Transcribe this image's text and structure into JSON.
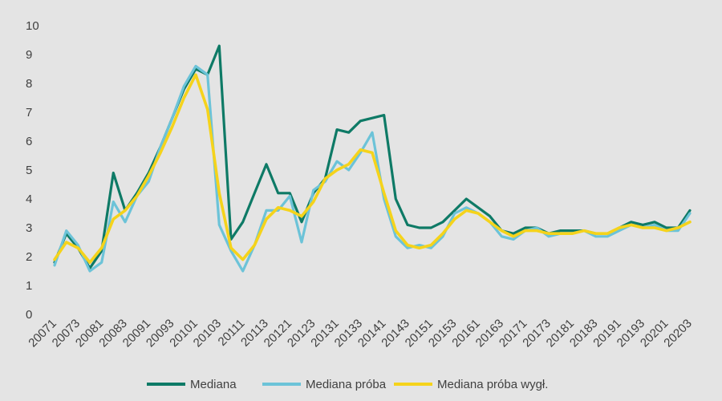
{
  "chart_data": {
    "type": "line",
    "title": "",
    "xlabel": "",
    "ylabel": "",
    "ylim": [
      0,
      10
    ],
    "yticks": [
      0,
      1,
      2,
      3,
      4,
      5,
      6,
      7,
      8,
      9,
      10
    ],
    "grid": false,
    "legend": "bottom",
    "x": [
      "20071",
      "20072",
      "20073",
      "20074",
      "20081",
      "20082",
      "20083",
      "20084",
      "20091",
      "20092",
      "20093",
      "20094",
      "20101",
      "20102",
      "20103",
      "20104",
      "20111",
      "20112",
      "20113",
      "20114",
      "20121",
      "20122",
      "20123",
      "20124",
      "20131",
      "20132",
      "20133",
      "20134",
      "20141",
      "20142",
      "20143",
      "20144",
      "20151",
      "20152",
      "20153",
      "20154",
      "20161",
      "20162",
      "20163",
      "20164",
      "20171",
      "20172",
      "20173",
      "20174",
      "20181",
      "20182",
      "20183",
      "20184",
      "20191",
      "20192",
      "20193",
      "20194",
      "20201",
      "20202",
      "20203"
    ],
    "series": [
      {
        "name": "Mediana",
        "color": "#0e7a66",
        "values": [
          1.8,
          2.8,
          2.3,
          1.6,
          2.2,
          4.9,
          3.6,
          4.2,
          4.9,
          5.8,
          6.8,
          7.8,
          8.5,
          8.3,
          9.3,
          2.6,
          3.2,
          4.2,
          5.2,
          4.2,
          4.2,
          3.2,
          4.2,
          4.7,
          6.4,
          6.3,
          6.7,
          6.8,
          6.9,
          4.0,
          3.1,
          3.0,
          3.0,
          3.2,
          3.6,
          4.0,
          3.7,
          3.4,
          2.9,
          2.8,
          3.0,
          3.0,
          2.8,
          2.9,
          2.9,
          2.9,
          2.8,
          2.8,
          3.0,
          3.2,
          3.1,
          3.2,
          3.0,
          3.0,
          3.6
        ]
      },
      {
        "name": "Mediana próba",
        "color": "#6cc3d8",
        "values": [
          1.7,
          2.9,
          2.4,
          1.5,
          1.8,
          3.9,
          3.2,
          4.1,
          4.6,
          5.8,
          6.8,
          7.9,
          8.6,
          8.3,
          3.1,
          2.2,
          1.5,
          2.4,
          3.6,
          3.6,
          4.1,
          2.5,
          4.3,
          4.6,
          5.3,
          5.0,
          5.6,
          6.3,
          4.0,
          2.7,
          2.3,
          2.4,
          2.3,
          2.7,
          3.5,
          3.7,
          3.5,
          3.2,
          2.7,
          2.6,
          2.9,
          3.0,
          2.7,
          2.8,
          2.8,
          2.9,
          2.7,
          2.7,
          2.9,
          3.1,
          3.0,
          3.1,
          2.9,
          2.9,
          3.5
        ]
      },
      {
        "name": "Mediana próba wygł.",
        "color": "#f5d31b",
        "values": [
          1.9,
          2.5,
          2.3,
          1.8,
          2.3,
          3.3,
          3.6,
          4.1,
          4.8,
          5.6,
          6.5,
          7.5,
          8.3,
          7.1,
          4.2,
          2.3,
          1.9,
          2.4,
          3.3,
          3.7,
          3.6,
          3.4,
          3.9,
          4.7,
          5.0,
          5.2,
          5.7,
          5.6,
          4.2,
          2.9,
          2.4,
          2.3,
          2.4,
          2.8,
          3.3,
          3.6,
          3.5,
          3.2,
          2.9,
          2.7,
          2.9,
          2.9,
          2.8,
          2.8,
          2.8,
          2.9,
          2.8,
          2.8,
          3.0,
          3.1,
          3.0,
          3.0,
          2.9,
          3.0,
          3.2
        ]
      }
    ],
    "x_tick_labels": [
      "20071",
      "20073",
      "20081",
      "20083",
      "20091",
      "20093",
      "20101",
      "20103",
      "20111",
      "20113",
      "20121",
      "20123",
      "20131",
      "20133",
      "20141",
      "20143",
      "20151",
      "20153",
      "20161",
      "20163",
      "20171",
      "20173",
      "20181",
      "20183",
      "20191",
      "20193",
      "20201",
      "20203"
    ]
  }
}
